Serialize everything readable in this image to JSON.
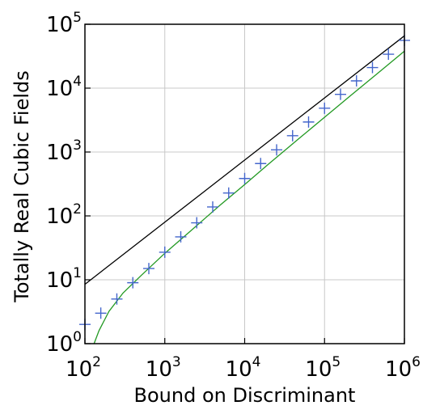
{
  "chart_data": {
    "type": "scatter",
    "title": "",
    "xlabel": "Bound on Discriminant",
    "ylabel": "Totally Real Cubic Fields",
    "xscale": "log",
    "yscale": "log",
    "xlim": [
      100,
      1000000
    ],
    "ylim": [
      1,
      100000
    ],
    "grid": true,
    "legend": "none",
    "x_ticks": [
      {
        "base": "10",
        "exp": "2",
        "value": 100
      },
      {
        "base": "10",
        "exp": "3",
        "value": 1000
      },
      {
        "base": "10",
        "exp": "4",
        "value": 10000
      },
      {
        "base": "10",
        "exp": "5",
        "value": 100000
      },
      {
        "base": "10",
        "exp": "6",
        "value": 1000000
      }
    ],
    "y_ticks": [
      {
        "base": "10",
        "exp": "0",
        "value": 1
      },
      {
        "base": "10",
        "exp": "1",
        "value": 10
      },
      {
        "base": "10",
        "exp": "2",
        "value": 100
      },
      {
        "base": "10",
        "exp": "3",
        "value": 1000
      },
      {
        "base": "10",
        "exp": "4",
        "value": 10000
      },
      {
        "base": "10",
        "exp": "5",
        "value": 100000
      }
    ],
    "series": [
      {
        "type": "scatter",
        "marker": "plus",
        "color": "#4466cc",
        "points": [
          [
            100,
            2
          ],
          [
            158,
            3
          ],
          [
            251,
            5
          ],
          [
            398,
            9
          ],
          [
            631,
            15
          ],
          [
            1000,
            27
          ],
          [
            1585,
            47
          ],
          [
            2512,
            78
          ],
          [
            3981,
            138
          ],
          [
            6310,
            228
          ],
          [
            10000,
            385
          ],
          [
            15849,
            660
          ],
          [
            25119,
            1080
          ],
          [
            39811,
            1800
          ],
          [
            63096,
            2950
          ],
          [
            100000,
            4850
          ],
          [
            158489,
            8000
          ],
          [
            251189,
            13000
          ],
          [
            398107,
            21000
          ],
          [
            630957,
            34000
          ],
          [
            1000000,
            56000
          ]
        ]
      },
      {
        "type": "line",
        "color": "#000000",
        "points": [
          [
            100,
            8.5
          ],
          [
            1000000,
            66000
          ]
        ]
      },
      {
        "type": "line",
        "color": "#229922",
        "points": [
          [
            130,
            1
          ],
          [
            150,
            1.6
          ],
          [
            200,
            3.2
          ],
          [
            300,
            6.2
          ],
          [
            500,
            11.5
          ],
          [
            1000,
            26
          ],
          [
            2000,
            55
          ],
          [
            5000,
            150
          ],
          [
            10000,
            310
          ],
          [
            20000,
            650
          ],
          [
            50000,
            1700
          ],
          [
            100000,
            3500
          ],
          [
            200000,
            7200
          ],
          [
            500000,
            18500
          ],
          [
            1000000,
            38000
          ]
        ]
      }
    ]
  }
}
